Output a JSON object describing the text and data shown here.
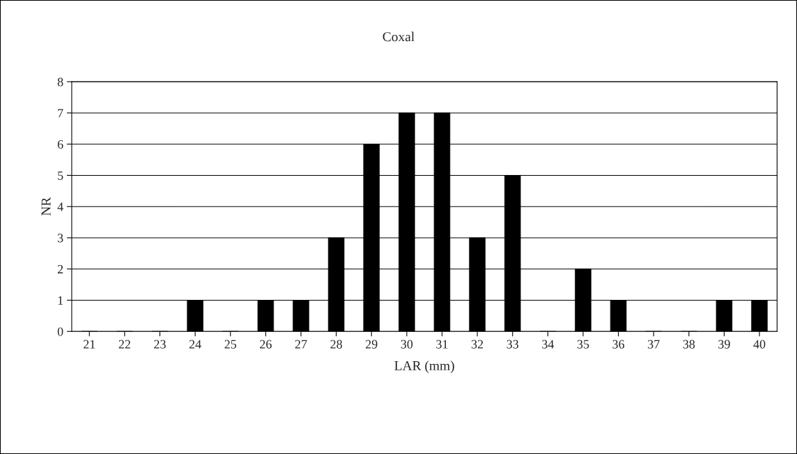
{
  "chart_data": {
    "type": "bar",
    "title": "Coxal",
    "xlabel": "LAR (mm)",
    "ylabel": "NR",
    "categories": [
      "21",
      "22",
      "23",
      "24",
      "25",
      "26",
      "27",
      "28",
      "29",
      "30",
      "31",
      "32",
      "33",
      "34",
      "35",
      "36",
      "37",
      "38",
      "39",
      "40"
    ],
    "values": [
      0,
      0,
      0,
      1,
      0,
      1,
      1,
      3,
      6,
      7,
      7,
      3,
      5,
      0,
      2,
      1,
      0,
      0,
      1,
      1
    ],
    "color": "#000000",
    "ylim": [
      0,
      8
    ],
    "yticks": [
      0,
      1,
      2,
      3,
      4,
      5,
      6,
      7,
      8
    ],
    "grid": "y"
  }
}
